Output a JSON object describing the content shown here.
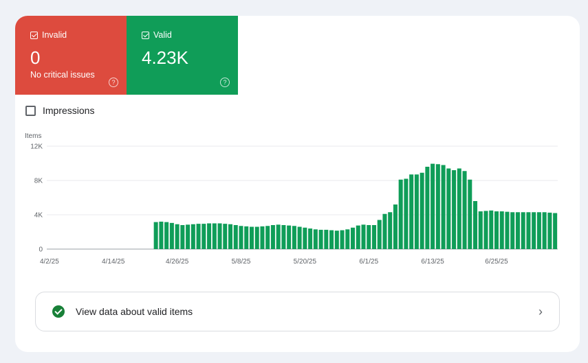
{
  "tiles": {
    "invalid": {
      "label": "Invalid",
      "value": "0",
      "sub": "No critical issues",
      "help": "?"
    },
    "valid": {
      "label": "Valid",
      "value": "4.23K",
      "help": "?"
    }
  },
  "impressions_label": "Impressions",
  "chart_data": {
    "type": "bar",
    "ylabel": "Items",
    "yticks": [
      "0",
      "4K",
      "8K",
      "12K"
    ],
    "ylim": [
      0,
      12000
    ],
    "xticks": [
      "4/2/25",
      "4/14/25",
      "4/26/25",
      "5/8/25",
      "5/20/25",
      "6/1/25",
      "6/13/25",
      "6/25/25"
    ],
    "start_date": "2025-04-02",
    "values": [
      0,
      0,
      0,
      0,
      0,
      0,
      0,
      0,
      0,
      0,
      0,
      0,
      0,
      0,
      0,
      0,
      0,
      0,
      0,
      0,
      3150,
      3200,
      3150,
      3050,
      2900,
      2800,
      2850,
      2900,
      2950,
      2950,
      3000,
      3000,
      3000,
      2950,
      2900,
      2800,
      2700,
      2650,
      2600,
      2600,
      2650,
      2700,
      2800,
      2850,
      2800,
      2750,
      2700,
      2600,
      2500,
      2400,
      2300,
      2250,
      2250,
      2200,
      2150,
      2200,
      2300,
      2500,
      2750,
      2850,
      2800,
      2800,
      3400,
      4100,
      4300,
      5200,
      8100,
      8200,
      8700,
      8700,
      8900,
      9600,
      9950,
      9900,
      9800,
      9400,
      9200,
      9400,
      9100,
      8100,
      5600,
      4400,
      4450,
      4500,
      4400,
      4400,
      4350,
      4300,
      4300,
      4300,
      4300,
      4300,
      4300,
      4300,
      4250,
      4200
    ],
    "color": "#0f9d58"
  },
  "view_button": {
    "label": "View data about valid items"
  }
}
